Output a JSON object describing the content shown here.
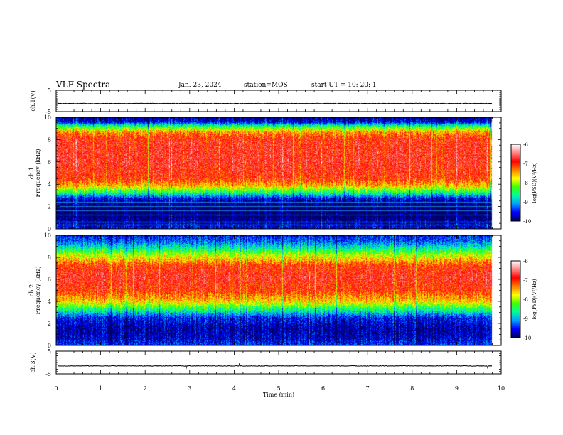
{
  "header": {
    "title": "VLF Spectra",
    "date": "Jan. 23, 2024",
    "station": "station=MOS",
    "start": "start  UT =   10: 20: 1"
  },
  "chart_data": [
    {
      "type": "line",
      "panel": "ch1-waveform",
      "ylabel": "ch.1(V)",
      "ylim": [
        -5,
        5
      ],
      "yticks": [
        5,
        -5
      ],
      "xlim": [
        0,
        10
      ],
      "series": [
        {
          "values_level": -1.2
        }
      ],
      "data_end_min": 9.8
    },
    {
      "type": "heatmap",
      "panel": "ch1-spectrogram",
      "ylabel": "ch.1\nFrequency (kHz)",
      "ylim": [
        0,
        10
      ],
      "yticks": [
        0,
        2,
        4,
        6,
        8,
        10
      ],
      "xlim": [
        0,
        10
      ],
      "data_end_min": 9.8,
      "colorbar": {
        "label": "log(PSD)(V²/Hz)",
        "range": [
          -10,
          -6
        ],
        "ticks": [
          -6,
          -7,
          -8,
          -9,
          -10
        ]
      },
      "profile_khz_log_psd": [
        [
          0.0,
          -9.6
        ],
        [
          0.5,
          -9.8
        ],
        [
          1.0,
          -10.0
        ],
        [
          2.0,
          -10.0
        ],
        [
          2.7,
          -9.6
        ],
        [
          3.2,
          -8.6
        ],
        [
          3.8,
          -7.6
        ],
        [
          4.5,
          -7.0
        ],
        [
          6.0,
          -6.8
        ],
        [
          8.0,
          -6.9
        ],
        [
          8.7,
          -7.4
        ],
        [
          9.2,
          -8.4
        ],
        [
          9.6,
          -9.6
        ],
        [
          10.0,
          -9.9
        ]
      ]
    },
    {
      "type": "heatmap",
      "panel": "ch2-spectrogram",
      "ylabel": "ch.2\nFrequency (kHz)",
      "ylim": [
        0,
        10
      ],
      "yticks": [
        0,
        2,
        4,
        6,
        8,
        10
      ],
      "xlim": [
        0,
        10
      ],
      "data_end_min": 9.8,
      "colorbar": {
        "label": "log(PSD)(V²/Hz)",
        "range": [
          -10,
          -6
        ],
        "ticks": [
          -6,
          -7,
          -8,
          -9,
          -10
        ]
      },
      "profile_khz_log_psd": [
        [
          0.0,
          -9.4
        ],
        [
          0.6,
          -9.7
        ],
        [
          1.5,
          -9.8
        ],
        [
          2.5,
          -9.5
        ],
        [
          3.2,
          -8.6
        ],
        [
          4.0,
          -7.6
        ],
        [
          5.0,
          -7.0
        ],
        [
          6.2,
          -6.8
        ],
        [
          7.2,
          -7.0
        ],
        [
          8.0,
          -7.7
        ],
        [
          8.8,
          -8.6
        ],
        [
          9.5,
          -9.3
        ],
        [
          10.0,
          -9.5
        ]
      ]
    },
    {
      "type": "line",
      "panel": "ch3-waveform",
      "ylabel": "ch.3(V)",
      "ylim": [
        -5,
        5
      ],
      "yticks": [
        5,
        -5
      ],
      "xlim": [
        0,
        10
      ],
      "series": [
        {
          "values_level": -1.5
        }
      ],
      "data_end_min": 9.8
    }
  ],
  "xaxis": {
    "label": "Time  (min)",
    "ticks": [
      0,
      1,
      2,
      3,
      4,
      5,
      6,
      7,
      8,
      9,
      10
    ]
  },
  "colors": {
    "colormap": [
      "#000060",
      "#0000ff",
      "#00a0ff",
      "#00ffa0",
      "#40ff00",
      "#ffff00",
      "#ff8000",
      "#ff0000",
      "#ff8080",
      "#ffffff"
    ]
  }
}
